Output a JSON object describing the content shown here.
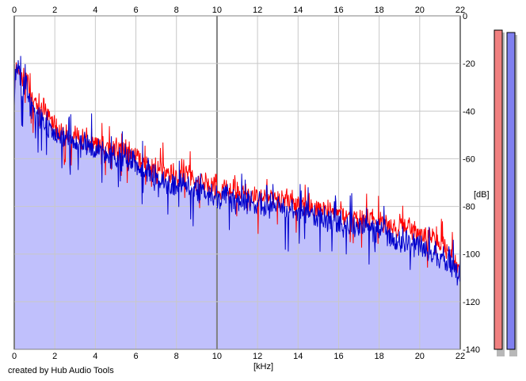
{
  "app": {
    "credit": "created by Hub Audio Tools"
  },
  "colors": {
    "background": "#ffffff",
    "plot_fill": "#c0c0fc",
    "grid_minor": "#c8c8c8",
    "grid_major": "#808080",
    "left_channel": "#ff0000",
    "right_channel": "#0000cc",
    "meter_left": "#f08080",
    "meter_right": "#8080f0",
    "meter_shadow": "#b8b8b8"
  },
  "meters": {
    "left": {
      "level_db": -6
    },
    "right": {
      "level_db": -7
    }
  },
  "chart_data": {
    "type": "line",
    "title": "",
    "xlabel": "[kHz]",
    "ylabel": "[dB]",
    "xlim": [
      0,
      22
    ],
    "ylim": [
      -140,
      0
    ],
    "x_ticks": [
      "0",
      "2",
      "4",
      "6",
      "8",
      "10",
      "12",
      "14",
      "16",
      "18",
      "20",
      "22"
    ],
    "y_ticks": [
      "0",
      "-20",
      "-40",
      "-60",
      "-80",
      "-100",
      "-120",
      "-140"
    ],
    "grid": true,
    "fill": "area under right channel",
    "series": [
      {
        "key": "left",
        "color": "#ff0000",
        "x": [
          0,
          0.1,
          0.2,
          0.4,
          0.6,
          0.8,
          1,
          1.5,
          2,
          2.5,
          3,
          3.5,
          4,
          4.5,
          5,
          5.5,
          6,
          6.5,
          7,
          7.5,
          8,
          8.5,
          9,
          9.5,
          10,
          10.5,
          11,
          11.5,
          12,
          12.5,
          13,
          13.5,
          14,
          14.5,
          15,
          15.5,
          16,
          16.5,
          17,
          17.5,
          18,
          18.5,
          19,
          19.5,
          20,
          20.5,
          21,
          21.5,
          22
        ],
        "y": [
          -34,
          -19,
          -22,
          -27,
          -25,
          -33,
          -36,
          -41,
          -46,
          -50,
          -51,
          -52,
          -54,
          -55,
          -57,
          -56,
          -58,
          -63,
          -64,
          -65,
          -68,
          -66,
          -70,
          -71,
          -73,
          -72,
          -74,
          -75,
          -76,
          -76,
          -77,
          -77,
          -79,
          -80,
          -81,
          -81,
          -83,
          -84,
          -85,
          -85,
          -86,
          -87,
          -89,
          -89,
          -91,
          -94,
          -96,
          -99,
          -108
        ]
      },
      {
        "key": "right",
        "color": "#0000cc",
        "x": [
          0,
          0.1,
          0.2,
          0.4,
          0.6,
          0.8,
          1,
          1.5,
          2,
          2.5,
          3,
          3.5,
          4,
          4.5,
          5,
          5.5,
          6,
          6.5,
          7,
          7.5,
          8,
          8.5,
          9,
          9.5,
          10,
          10.5,
          11,
          11.5,
          12,
          12.5,
          13,
          13.5,
          14,
          14.5,
          15,
          15.5,
          16,
          16.5,
          17,
          17.5,
          18,
          18.5,
          19,
          19.5,
          20,
          20.5,
          21,
          21.5,
          22
        ],
        "y": [
          -38,
          -20,
          -24,
          -30,
          -27,
          -38,
          -40,
          -45,
          -49,
          -52,
          -53,
          -54,
          -56,
          -57,
          -60,
          -60,
          -62,
          -67,
          -68,
          -70,
          -72,
          -70,
          -73,
          -74,
          -76,
          -76,
          -78,
          -78,
          -79,
          -80,
          -81,
          -81,
          -82,
          -83,
          -84,
          -85,
          -87,
          -88,
          -89,
          -90,
          -90,
          -92,
          -94,
          -95,
          -97,
          -99,
          -101,
          -104,
          -110
        ]
      }
    ]
  }
}
